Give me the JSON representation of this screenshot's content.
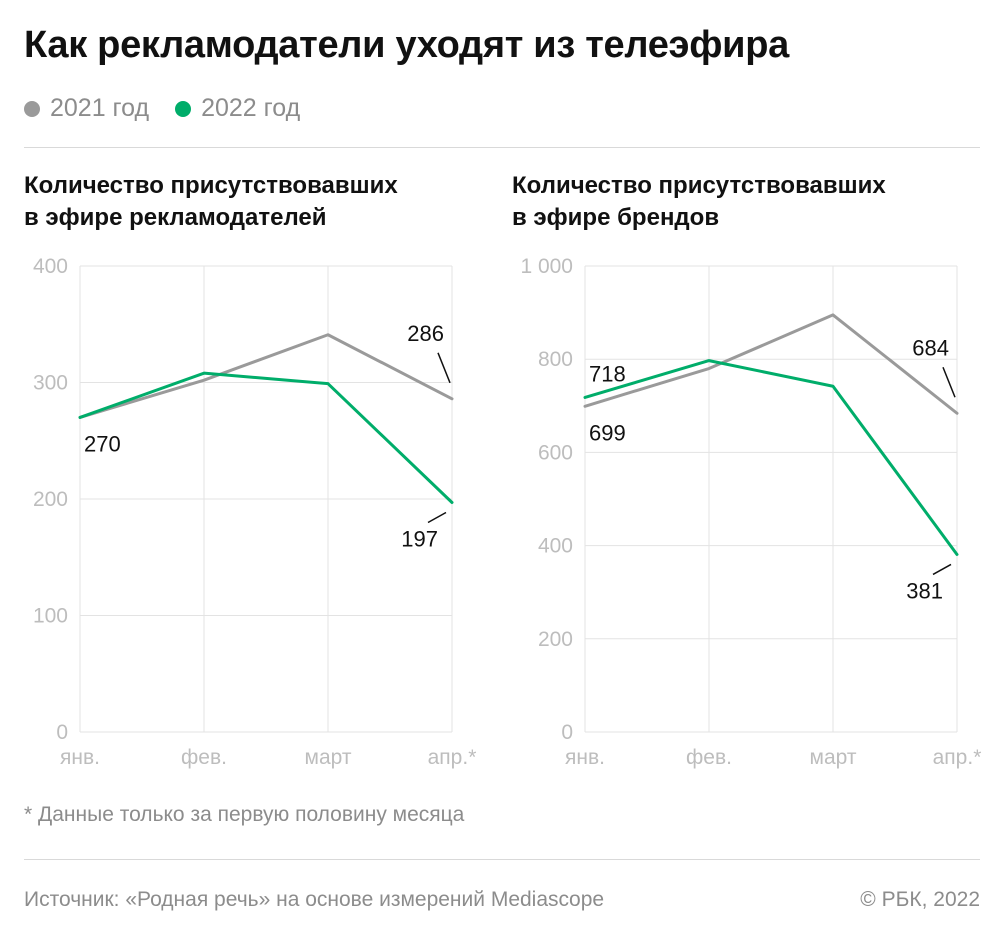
{
  "header": {
    "title": "Как рекламодатели уходят из телеэфира"
  },
  "legend": [
    {
      "label": "2021 год",
      "color": "#9a9a9a"
    },
    {
      "label": "2022 год",
      "color": "#00ad6a"
    }
  ],
  "chart_data": [
    {
      "type": "line",
      "title_lines": [
        "Количество присутствовавших",
        "в эфире рекламодателей"
      ],
      "categories": [
        "янв.",
        "фев.",
        "март",
        "апр.*"
      ],
      "ylim": [
        0,
        400
      ],
      "y_ticks": [
        "400",
        "300",
        "200",
        "100",
        "0"
      ],
      "y_tick_values": [
        400,
        300,
        200,
        100,
        0
      ],
      "grid": true,
      "series": [
        {
          "name": "2021 год",
          "color": "#9a9a9a",
          "values": [
            270,
            302,
            341,
            286
          ]
        },
        {
          "name": "2022 год",
          "color": "#00ad6a",
          "values": [
            270,
            308,
            299,
            197
          ]
        }
      ],
      "annotations": [
        {
          "series": 0,
          "index": 3,
          "text": "286",
          "placement": "above-left"
        },
        {
          "series": 1,
          "index": 3,
          "text": "197",
          "placement": "below-left"
        },
        {
          "series": 0,
          "index": 0,
          "text": "270",
          "placement": "below"
        }
      ]
    },
    {
      "type": "line",
      "title_lines": [
        "Количество присутствовавших",
        "в эфире брендов"
      ],
      "categories": [
        "янв.",
        "фев.",
        "март",
        "апр.*"
      ],
      "ylim": [
        0,
        1000
      ],
      "y_ticks": [
        "1 000",
        "800",
        "600",
        "400",
        "200",
        "0"
      ],
      "y_tick_values": [
        1000,
        800,
        600,
        400,
        200,
        0
      ],
      "grid": true,
      "series": [
        {
          "name": "2021 год",
          "color": "#9a9a9a",
          "values": [
            699,
            780,
            895,
            684
          ]
        },
        {
          "name": "2022 год",
          "color": "#00ad6a",
          "values": [
            718,
            797,
            742,
            381
          ]
        }
      ],
      "annotations": [
        {
          "series": 0,
          "index": 3,
          "text": "684",
          "placement": "above-left"
        },
        {
          "series": 1,
          "index": 3,
          "text": "381",
          "placement": "below-left"
        },
        {
          "series": 1,
          "index": 0,
          "text": "718",
          "placement": "above"
        },
        {
          "series": 0,
          "index": 0,
          "text": "699",
          "placement": "below"
        }
      ]
    }
  ],
  "footnote": "* Данные только за первую половину месяца",
  "footer": {
    "source": "Источник: «Родная речь» на основе измерений Mediascope",
    "copyright": "© РБК, 2022"
  }
}
